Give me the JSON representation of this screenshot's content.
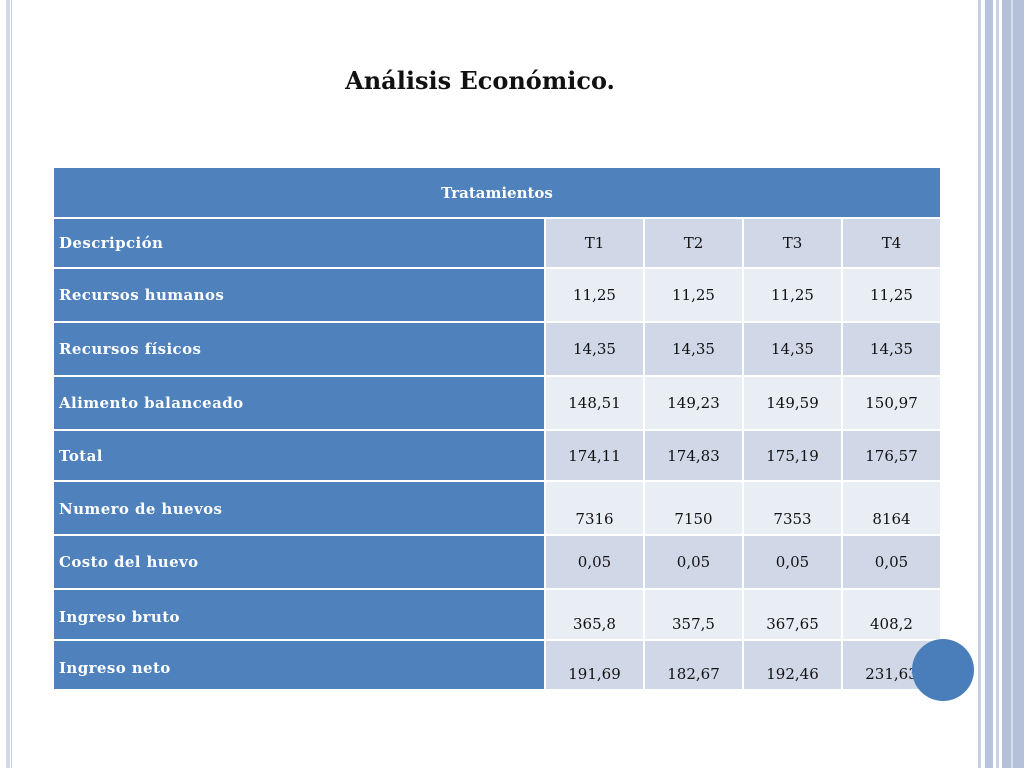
{
  "slide": {
    "title": "Análisis Económico."
  },
  "table": {
    "group_header": "Tratamientos",
    "columns": [
      "Descripción",
      "T1",
      "T2",
      "T3",
      "T4"
    ],
    "rows": [
      {
        "label": "Recursos humanos",
        "values": [
          "11,25",
          "11,25",
          "11,25",
          "11,25"
        ]
      },
      {
        "label": "Recursos físicos",
        "values": [
          "14,35",
          "14,35",
          "14,35",
          "14,35"
        ]
      },
      {
        "label": "Alimento balanceado",
        "values": [
          "148,51",
          "149,23",
          "149,59",
          "150,97"
        ]
      },
      {
        "label": "Total",
        "values": [
          "174,11",
          "174,83",
          "175,19",
          "176,57"
        ]
      },
      {
        "label": "Numero de huevos",
        "values": [
          "7316",
          "7150",
          "7353",
          "8164"
        ]
      },
      {
        "label": "Costo del huevo",
        "values": [
          "0,05",
          "0,05",
          "0,05",
          "0,05"
        ]
      },
      {
        "label": "Ingreso bruto",
        "values": [
          "365,8",
          "357,5",
          "367,65",
          "408,2"
        ]
      },
      {
        "label": "Ingreso neto",
        "values": [
          "191,69",
          "182,67",
          "192,46",
          "231,63"
        ]
      }
    ]
  },
  "colors": {
    "header_blue": "#4f81bd",
    "row_dark": "#d0d8e8",
    "row_light": "#e9edf4",
    "accent_circle": "#4a7ebb"
  }
}
